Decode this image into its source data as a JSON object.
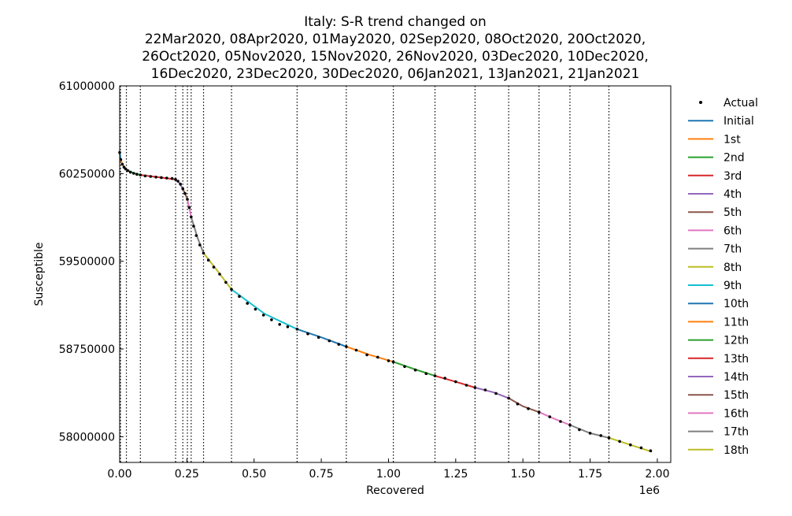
{
  "chart_data": {
    "type": "line",
    "title_lines": [
      "Italy: S-R trend changed on",
      "22Mar2020, 08Apr2020, 01May2020, 02Sep2020, 08Oct2020, 20Oct2020,",
      "26Oct2020, 05Nov2020, 15Nov2020, 26Nov2020, 03Dec2020, 10Dec2020,",
      "16Dec2020, 23Dec2020, 30Dec2020, 06Jan2021, 13Jan2021, 21Jan2021"
    ],
    "xlabel": "Recovered",
    "ylabel": "Susceptible",
    "x_offset_label": "1e6",
    "xlim": [
      0,
      2.05
    ],
    "ylim": [
      57780000,
      61000000
    ],
    "x_ticks": [
      0.0,
      0.25,
      0.5,
      0.75,
      1.0,
      1.25,
      1.5,
      1.75,
      2.0
    ],
    "x_tick_labels": [
      "0.00",
      "0.25",
      "0.50",
      "0.75",
      "1.00",
      "1.25",
      "1.50",
      "1.75",
      "2.00"
    ],
    "y_ticks": [
      58000000,
      58750000,
      59500000,
      60250000,
      61000000
    ],
    "y_tick_labels": [
      "58000000",
      "58750000",
      "59500000",
      "60250000",
      "61000000"
    ],
    "legend_position": "outside-right",
    "legend": [
      {
        "label": "Actual",
        "marker": "dot",
        "color": "#000000"
      },
      {
        "label": "Initial",
        "color": "#1f77b4"
      },
      {
        "label": "1st",
        "color": "#ff7f0e"
      },
      {
        "label": "2nd",
        "color": "#2ca02c"
      },
      {
        "label": "3rd",
        "color": "#d62728"
      },
      {
        "label": "4th",
        "color": "#9467bd"
      },
      {
        "label": "5th",
        "color": "#8c564b"
      },
      {
        "label": "6th",
        "color": "#e377c2"
      },
      {
        "label": "7th",
        "color": "#7f7f7f"
      },
      {
        "label": "8th",
        "color": "#bcbd22"
      },
      {
        "label": "9th",
        "color": "#17becf"
      },
      {
        "label": "10th",
        "color": "#1f77b4"
      },
      {
        "label": "11th",
        "color": "#ff7f0e"
      },
      {
        "label": "12th",
        "color": "#2ca02c"
      },
      {
        "label": "13th",
        "color": "#d62728"
      },
      {
        "label": "14th",
        "color": "#9467bd"
      },
      {
        "label": "15th",
        "color": "#8c564b"
      },
      {
        "label": "16th",
        "color": "#e377c2"
      },
      {
        "label": "17th",
        "color": "#7f7f7f"
      },
      {
        "label": "18th",
        "color": "#bcbd22"
      }
    ],
    "change_points_recovered": [
      0.003,
      0.025,
      0.077,
      0.208,
      0.235,
      0.252,
      0.266,
      0.312,
      0.416,
      0.66,
      0.843,
      1.018,
      1.173,
      1.322,
      1.447,
      1.56,
      1.675,
      1.82
    ],
    "actual_points": [
      [
        0.0,
        60430000
      ],
      [
        0.004,
        60370000
      ],
      [
        0.01,
        60330000
      ],
      [
        0.016,
        60305000
      ],
      [
        0.022,
        60290000
      ],
      [
        0.03,
        60275000
      ],
      [
        0.04,
        60262000
      ],
      [
        0.052,
        60252000
      ],
      [
        0.064,
        60244000
      ],
      [
        0.077,
        60238000
      ],
      [
        0.095,
        60230000
      ],
      [
        0.115,
        60225000
      ],
      [
        0.135,
        60220000
      ],
      [
        0.155,
        60216000
      ],
      [
        0.175,
        60212000
      ],
      [
        0.195,
        60208000
      ],
      [
        0.208,
        60200000
      ],
      [
        0.217,
        60185000
      ],
      [
        0.226,
        60160000
      ],
      [
        0.235,
        60120000
      ],
      [
        0.243,
        60080000
      ],
      [
        0.252,
        60030000
      ],
      [
        0.259,
        59960000
      ],
      [
        0.266,
        59880000
      ],
      [
        0.275,
        59800000
      ],
      [
        0.285,
        59720000
      ],
      [
        0.298,
        59640000
      ],
      [
        0.312,
        59570000
      ],
      [
        0.33,
        59510000
      ],
      [
        0.35,
        59450000
      ],
      [
        0.372,
        59390000
      ],
      [
        0.395,
        59320000
      ],
      [
        0.416,
        59260000
      ],
      [
        0.445,
        59200000
      ],
      [
        0.475,
        59140000
      ],
      [
        0.505,
        59090000
      ],
      [
        0.535,
        59040000
      ],
      [
        0.565,
        59000000
      ],
      [
        0.595,
        58960000
      ],
      [
        0.625,
        58940000
      ],
      [
        0.66,
        58920000
      ],
      [
        0.7,
        58880000
      ],
      [
        0.74,
        58850000
      ],
      [
        0.78,
        58820000
      ],
      [
        0.815,
        58790000
      ],
      [
        0.843,
        58770000
      ],
      [
        0.88,
        58740000
      ],
      [
        0.92,
        58700000
      ],
      [
        0.96,
        58680000
      ],
      [
        1.0,
        58650000
      ],
      [
        1.018,
        58640000
      ],
      [
        1.06,
        58600000
      ],
      [
        1.1,
        58570000
      ],
      [
        1.14,
        58540000
      ],
      [
        1.173,
        58520000
      ],
      [
        1.21,
        58500000
      ],
      [
        1.25,
        58470000
      ],
      [
        1.29,
        58440000
      ],
      [
        1.322,
        58420000
      ],
      [
        1.36,
        58400000
      ],
      [
        1.4,
        58370000
      ],
      [
        1.447,
        58330000
      ],
      [
        1.48,
        58280000
      ],
      [
        1.52,
        58240000
      ],
      [
        1.56,
        58210000
      ],
      [
        1.6,
        58170000
      ],
      [
        1.64,
        58130000
      ],
      [
        1.675,
        58100000
      ],
      [
        1.71,
        58060000
      ],
      [
        1.75,
        58030000
      ],
      [
        1.79,
        58010000
      ],
      [
        1.82,
        57990000
      ],
      [
        1.86,
        57960000
      ],
      [
        1.9,
        57930000
      ],
      [
        1.94,
        57905000
      ],
      [
        1.975,
        57880000
      ]
    ],
    "fit_segments": [
      {
        "name": "Initial",
        "color": "#1f77b4",
        "points": [
          [
            0.0,
            60430000
          ],
          [
            0.003,
            60380000
          ]
        ]
      },
      {
        "name": "1st",
        "color": "#ff7f0e",
        "points": [
          [
            0.003,
            60380000
          ],
          [
            0.01,
            60330000
          ],
          [
            0.025,
            60285000
          ]
        ]
      },
      {
        "name": "2nd",
        "color": "#2ca02c",
        "points": [
          [
            0.025,
            60285000
          ],
          [
            0.05,
            60255000
          ],
          [
            0.077,
            60238000
          ]
        ]
      },
      {
        "name": "3rd",
        "color": "#d62728",
        "points": [
          [
            0.077,
            60238000
          ],
          [
            0.14,
            60220000
          ],
          [
            0.208,
            60200000
          ]
        ]
      },
      {
        "name": "4th",
        "color": "#9467bd",
        "points": [
          [
            0.208,
            60200000
          ],
          [
            0.222,
            60170000
          ],
          [
            0.235,
            60120000
          ]
        ]
      },
      {
        "name": "5th",
        "color": "#8c564b",
        "points": [
          [
            0.235,
            60120000
          ],
          [
            0.244,
            60075000
          ],
          [
            0.252,
            60030000
          ]
        ]
      },
      {
        "name": "6th",
        "color": "#e377c2",
        "points": [
          [
            0.252,
            60030000
          ],
          [
            0.259,
            59955000
          ],
          [
            0.266,
            59880000
          ]
        ]
      },
      {
        "name": "7th",
        "color": "#7f7f7f",
        "points": [
          [
            0.266,
            59880000
          ],
          [
            0.29,
            59700000
          ],
          [
            0.312,
            59570000
          ]
        ]
      },
      {
        "name": "8th",
        "color": "#bcbd22",
        "points": [
          [
            0.312,
            59570000
          ],
          [
            0.36,
            59430000
          ],
          [
            0.416,
            59260000
          ]
        ]
      },
      {
        "name": "9th",
        "color": "#17becf",
        "points": [
          [
            0.416,
            59260000
          ],
          [
            0.54,
            59050000
          ],
          [
            0.66,
            58920000
          ]
        ]
      },
      {
        "name": "10th",
        "color": "#1f77b4",
        "points": [
          [
            0.66,
            58920000
          ],
          [
            0.75,
            58850000
          ],
          [
            0.843,
            58770000
          ]
        ]
      },
      {
        "name": "11th",
        "color": "#ff7f0e",
        "points": [
          [
            0.843,
            58770000
          ],
          [
            0.93,
            58700000
          ],
          [
            1.018,
            58640000
          ]
        ]
      },
      {
        "name": "12th",
        "color": "#2ca02c",
        "points": [
          [
            1.018,
            58640000
          ],
          [
            1.1,
            58575000
          ],
          [
            1.173,
            58520000
          ]
        ]
      },
      {
        "name": "13th",
        "color": "#d62728",
        "points": [
          [
            1.173,
            58520000
          ],
          [
            1.25,
            58470000
          ],
          [
            1.322,
            58420000
          ]
        ]
      },
      {
        "name": "14th",
        "color": "#9467bd",
        "points": [
          [
            1.322,
            58420000
          ],
          [
            1.39,
            58380000
          ],
          [
            1.447,
            58330000
          ]
        ]
      },
      {
        "name": "15th",
        "color": "#8c564b",
        "points": [
          [
            1.447,
            58330000
          ],
          [
            1.5,
            58260000
          ],
          [
            1.56,
            58210000
          ]
        ]
      },
      {
        "name": "16th",
        "color": "#e377c2",
        "points": [
          [
            1.56,
            58210000
          ],
          [
            1.62,
            58150000
          ],
          [
            1.675,
            58100000
          ]
        ]
      },
      {
        "name": "17th",
        "color": "#7f7f7f",
        "points": [
          [
            1.675,
            58100000
          ],
          [
            1.75,
            58030000
          ],
          [
            1.82,
            57990000
          ]
        ]
      },
      {
        "name": "18th",
        "color": "#bcbd22",
        "points": [
          [
            1.82,
            57990000
          ],
          [
            1.9,
            57930000
          ],
          [
            1.98,
            57870000
          ]
        ]
      }
    ]
  }
}
